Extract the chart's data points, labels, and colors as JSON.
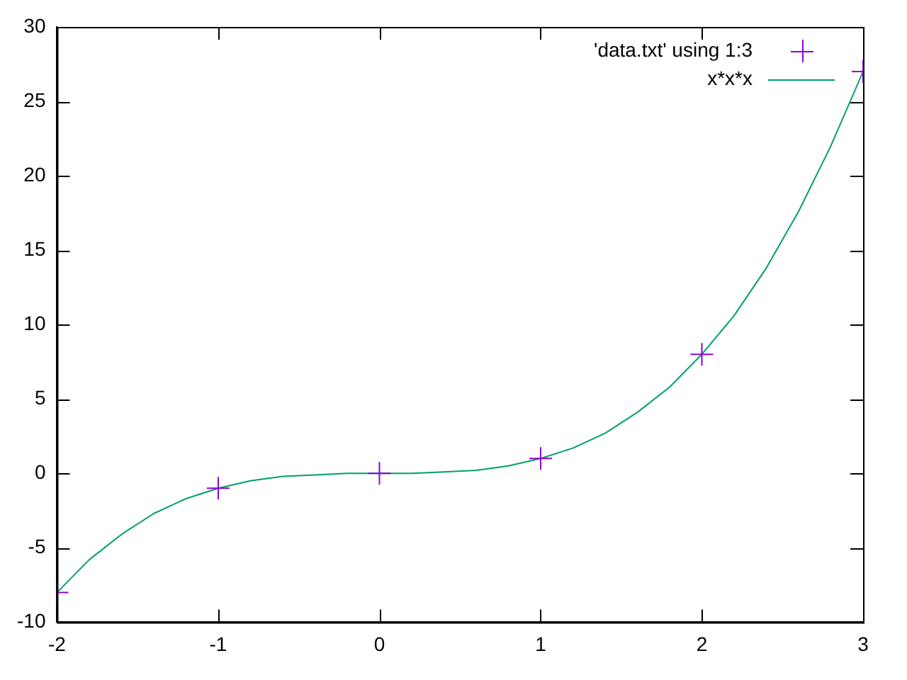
{
  "chart_data": {
    "type": "scatter",
    "xlim": [
      -2,
      3
    ],
    "xticks": [
      -2,
      -1,
      0,
      1,
      2,
      3
    ],
    "ylim": [
      -10,
      30
    ],
    "yticks": [
      -10,
      -5,
      0,
      5,
      10,
      15,
      20,
      25,
      30
    ],
    "grid": false,
    "legend": "top right",
    "series": [
      {
        "name": "'data.txt' using 1:3",
        "color": "#9400d3",
        "marker": "cross",
        "x": [
          -2,
          -1,
          0,
          1,
          2,
          3
        ],
        "values": [
          -8,
          -1,
          0,
          1,
          8,
          27
        ]
      },
      {
        "name": "x*x*x",
        "type": "line",
        "color": "#009e73",
        "marker": "none",
        "line_style": "solid",
        "x": [
          -2,
          -1.8,
          -1.6,
          -1.4,
          -1.2,
          -1,
          -0.8,
          -0.6,
          -0.4,
          -0.2,
          0,
          0.2,
          0.4,
          0.6,
          0.8,
          1,
          1.2,
          1.4,
          1.6,
          1.8,
          2,
          2.2,
          2.4,
          2.6,
          2.8,
          3
        ],
        "values": [
          -8,
          -5.8,
          -4.1,
          -2.7,
          -1.7,
          -1,
          -0.5,
          -0.2,
          -0.1,
          0,
          0,
          0,
          0.1,
          0.2,
          0.5,
          1,
          1.7,
          2.7,
          4.1,
          5.8,
          8,
          10.6,
          13.8,
          17.6,
          22,
          27
        ]
      }
    ]
  }
}
